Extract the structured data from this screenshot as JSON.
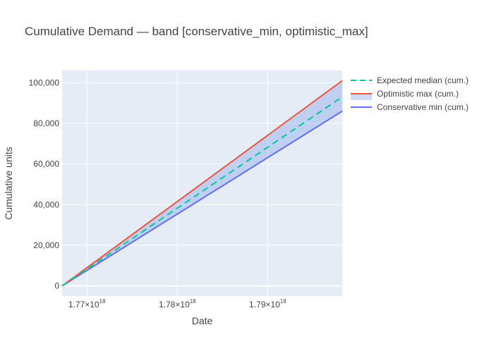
{
  "chart_data": {
    "type": "area",
    "title": "Cumulative Demand — band [conservative_min, optimistic_max]",
    "xlabel": "Date",
    "ylabel": "Cumulative units",
    "x_tick_mantissa": [
      "1.77",
      "1.78",
      "1.79"
    ],
    "x_tick_exponent": "18",
    "x_ticks": [
      1.77e+18,
      1.78e+18,
      1.79e+18
    ],
    "xlim": [
      1.76725e+18,
      1.79825e+18
    ],
    "ylim": [
      -5000,
      106000
    ],
    "y_ticks": [
      0,
      20000,
      40000,
      60000,
      80000,
      100000
    ],
    "y_tick_labels": [
      "0",
      "20,000",
      "40,000",
      "60,000",
      "80,000",
      "100,000"
    ],
    "grid": true,
    "legend_position": "top-right",
    "series": [
      {
        "name": "Expected median (cum.)",
        "color": "#00cc96",
        "dash": "dash",
        "x": [
          1.76725e+18,
          1.79825e+18
        ],
        "y": [
          0,
          93000
        ]
      },
      {
        "name": "Optimistic max (cum.)",
        "color": "#ef553b",
        "dash": "solid",
        "band_fill": "rgba(99,140,230,0.3)",
        "x": [
          1.76725e+18,
          1.79825e+18
        ],
        "y": [
          0,
          101000
        ]
      },
      {
        "name": "Conservative min (cum.)",
        "color": "#636efa",
        "dash": "solid",
        "x": [
          1.76725e+18,
          1.79825e+18
        ],
        "y": [
          0,
          86000
        ]
      }
    ]
  }
}
